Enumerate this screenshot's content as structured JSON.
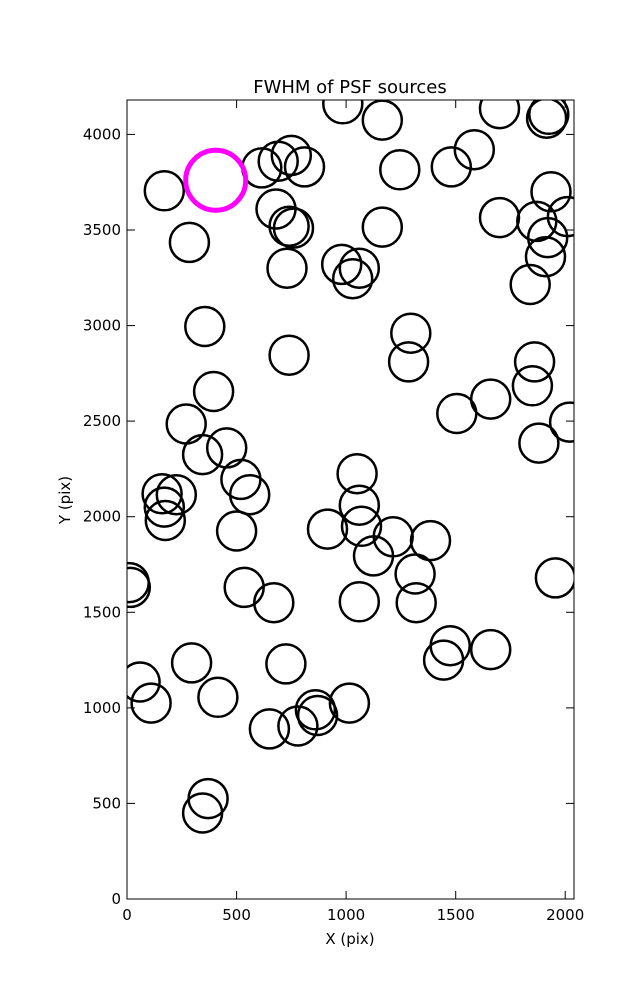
{
  "chart_data": {
    "type": "scatter",
    "title": "FWHM of PSF sources",
    "xlabel": "X (pix)",
    "ylabel": "Y (pix)",
    "xlim": [
      0,
      2040
    ],
    "ylim": [
      0,
      4180
    ],
    "xticks": [
      0,
      500,
      1000,
      1500,
      2000
    ],
    "yticks": [
      0,
      500,
      1000,
      1500,
      2000,
      2500,
      3000,
      3500,
      4000
    ],
    "marker": "open-circle",
    "grid": false,
    "series": [
      {
        "color": "#000000",
        "points": [
          {
            "x": 985,
            "y": 4160
          },
          {
            "x": 1165,
            "y": 4075
          },
          {
            "x": 1700,
            "y": 4135
          },
          {
            "x": 1915,
            "y": 4085
          },
          {
            "x": 1925,
            "y": 4105
          },
          {
            "x": 615,
            "y": 3825
          },
          {
            "x": 690,
            "y": 3860
          },
          {
            "x": 750,
            "y": 3890
          },
          {
            "x": 810,
            "y": 3830
          },
          {
            "x": 1245,
            "y": 3815
          },
          {
            "x": 1480,
            "y": 3830
          },
          {
            "x": 1585,
            "y": 3920
          },
          {
            "x": 170,
            "y": 3705
          },
          {
            "x": 680,
            "y": 3610
          },
          {
            "x": 740,
            "y": 3520
          },
          {
            "x": 760,
            "y": 3510
          },
          {
            "x": 1700,
            "y": 3565
          },
          {
            "x": 1870,
            "y": 3545
          },
          {
            "x": 1935,
            "y": 3700
          },
          {
            "x": 2010,
            "y": 3570
          },
          {
            "x": 1920,
            "y": 3460
          },
          {
            "x": 1910,
            "y": 3360
          },
          {
            "x": 1165,
            "y": 3515
          },
          {
            "x": 285,
            "y": 3435
          },
          {
            "x": 730,
            "y": 3300
          },
          {
            "x": 980,
            "y": 3320
          },
          {
            "x": 1060,
            "y": 3300
          },
          {
            "x": 1030,
            "y": 3245
          },
          {
            "x": 1840,
            "y": 3215
          },
          {
            "x": 355,
            "y": 2995
          },
          {
            "x": 1295,
            "y": 2960
          },
          {
            "x": 1285,
            "y": 2810
          },
          {
            "x": 740,
            "y": 2845
          },
          {
            "x": 1860,
            "y": 2810
          },
          {
            "x": 1850,
            "y": 2685
          },
          {
            "x": 395,
            "y": 2655
          },
          {
            "x": 1660,
            "y": 2615
          },
          {
            "x": 1505,
            "y": 2540
          },
          {
            "x": 2020,
            "y": 2495
          },
          {
            "x": 1880,
            "y": 2385
          },
          {
            "x": 270,
            "y": 2485
          },
          {
            "x": 455,
            "y": 2360
          },
          {
            "x": 345,
            "y": 2325
          },
          {
            "x": 1050,
            "y": 2225
          },
          {
            "x": 520,
            "y": 2195
          },
          {
            "x": 560,
            "y": 2115
          },
          {
            "x": 160,
            "y": 2120
          },
          {
            "x": 225,
            "y": 2115
          },
          {
            "x": 170,
            "y": 2050
          },
          {
            "x": 175,
            "y": 1980
          },
          {
            "x": 1060,
            "y": 2060
          },
          {
            "x": 915,
            "y": 1935
          },
          {
            "x": 1070,
            "y": 1950
          },
          {
            "x": 1215,
            "y": 1895
          },
          {
            "x": 1385,
            "y": 1875
          },
          {
            "x": 500,
            "y": 1925
          },
          {
            "x": 1125,
            "y": 1795
          },
          {
            "x": 1315,
            "y": 1700
          },
          {
            "x": 1955,
            "y": 1680
          },
          {
            "x": 10,
            "y": 1655
          },
          {
            "x": 15,
            "y": 1630
          },
          {
            "x": 535,
            "y": 1630
          },
          {
            "x": 670,
            "y": 1550
          },
          {
            "x": 1060,
            "y": 1555
          },
          {
            "x": 1320,
            "y": 1550
          },
          {
            "x": 1475,
            "y": 1325
          },
          {
            "x": 1445,
            "y": 1250
          },
          {
            "x": 1660,
            "y": 1305
          },
          {
            "x": 295,
            "y": 1235
          },
          {
            "x": 725,
            "y": 1230
          },
          {
            "x": 60,
            "y": 1135
          },
          {
            "x": 110,
            "y": 1025
          },
          {
            "x": 415,
            "y": 1055
          },
          {
            "x": 1015,
            "y": 1025
          },
          {
            "x": 860,
            "y": 990
          },
          {
            "x": 870,
            "y": 960
          },
          {
            "x": 650,
            "y": 890
          },
          {
            "x": 780,
            "y": 905
          },
          {
            "x": 370,
            "y": 525
          },
          {
            "x": 345,
            "y": 450
          }
        ]
      },
      {
        "color": "#ff00ff",
        "points": [
          {
            "x": 405,
            "y": 3760
          }
        ]
      }
    ]
  }
}
